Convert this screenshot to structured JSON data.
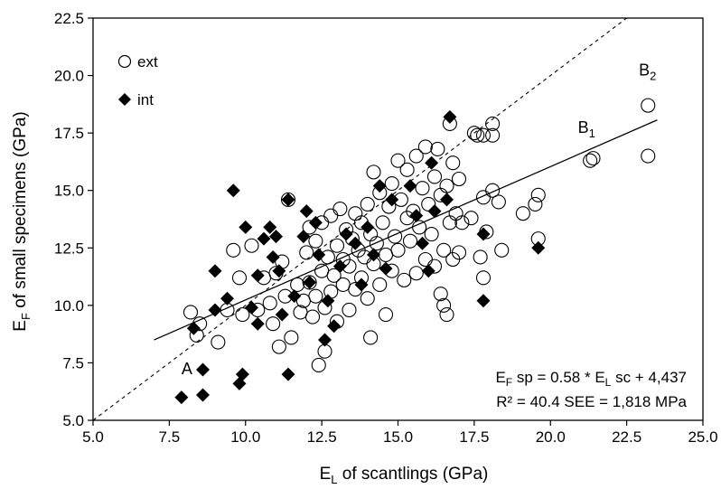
{
  "chart_data": {
    "type": "scatter",
    "xlabel": {
      "main": "E",
      "sub": "L",
      "rest": " of scantlings (GPa)"
    },
    "ylabel": {
      "main": "E",
      "sub": "F",
      "rest": " of small specimens (GPa)"
    },
    "xlim": [
      5.0,
      25.0
    ],
    "ylim": [
      5.0,
      22.5
    ],
    "xticks": [
      "5.0",
      "7.5",
      "10.0",
      "12.5",
      "15.0",
      "17.5",
      "20.0",
      "22.5",
      "25.0"
    ],
    "yticks": [
      "5.0",
      "7.5",
      "10.0",
      "12.5",
      "15.0",
      "17.5",
      "20.0",
      "22.5"
    ],
    "legend": {
      "position": "top-left",
      "ext_label": "ext",
      "int_label": "int"
    },
    "equation_line1": {
      "a": "E",
      "a_sub": "F",
      "b": " sp = 0.58 * E",
      "b_sub": "L",
      "c": " sc + 4,437"
    },
    "equation_line2": "R² = 40.4 SEE = 1,818 MPa",
    "regression": {
      "slope": 0.58,
      "intercept": 4.437,
      "x_start": 7.0,
      "x_end": 23.5
    },
    "reference_line": "1:1",
    "annotations": [
      {
        "main": "A",
        "sub": "",
        "x": 7.9,
        "y": 7.0
      },
      {
        "main": "B",
        "sub": "1",
        "x": 20.9,
        "y": 17.5
      },
      {
        "main": "B",
        "sub": "2",
        "x": 22.9,
        "y": 20.0
      }
    ],
    "series": [
      {
        "name": "ext",
        "marker": "open-circle",
        "points": [
          [
            8.2,
            9.7
          ],
          [
            8.5,
            9.2
          ],
          [
            8.4,
            8.7
          ],
          [
            9.1,
            8.4
          ],
          [
            9.4,
            9.8
          ],
          [
            9.6,
            12.4
          ],
          [
            9.8,
            11.2
          ],
          [
            9.9,
            9.6
          ],
          [
            10.2,
            12.6
          ],
          [
            10.4,
            9.8
          ],
          [
            10.6,
            11.2
          ],
          [
            10.8,
            10.1
          ],
          [
            10.9,
            9.2
          ],
          [
            11.0,
            11.4
          ],
          [
            11.2,
            11.9
          ],
          [
            11.3,
            10.4
          ],
          [
            11.4,
            14.6
          ],
          [
            11.5,
            8.6
          ],
          [
            11.1,
            8.2
          ],
          [
            11.7,
            10.9
          ],
          [
            11.8,
            9.7
          ],
          [
            11.9,
            10.2
          ],
          [
            12.0,
            12.3
          ],
          [
            12.1,
            13.4
          ],
          [
            12.1,
            11.0
          ],
          [
            12.2,
            9.5
          ],
          [
            12.3,
            12.8
          ],
          [
            12.3,
            10.4
          ],
          [
            12.4,
            7.4
          ],
          [
            12.5,
            13.6
          ],
          [
            12.5,
            11.5
          ],
          [
            12.6,
            8.0
          ],
          [
            12.6,
            9.9
          ],
          [
            12.7,
            12.1
          ],
          [
            12.8,
            10.6
          ],
          [
            12.8,
            13.9
          ],
          [
            12.9,
            11.3
          ],
          [
            13.0,
            9.3
          ],
          [
            13.0,
            12.6
          ],
          [
            13.1,
            14.2
          ],
          [
            13.2,
            10.9
          ],
          [
            13.2,
            12.0
          ],
          [
            13.3,
            13.3
          ],
          [
            13.4,
            9.8
          ],
          [
            13.4,
            11.7
          ],
          [
            13.5,
            12.9
          ],
          [
            13.6,
            14.0
          ],
          [
            13.6,
            10.7
          ],
          [
            13.7,
            12.4
          ],
          [
            13.8,
            11.2
          ],
          [
            13.8,
            13.6
          ],
          [
            13.9,
            12.1
          ],
          [
            14.0,
            14.4
          ],
          [
            14.0,
            10.3
          ],
          [
            14.1,
            8.6
          ],
          [
            14.1,
            13.1
          ],
          [
            14.2,
            11.8
          ],
          [
            14.2,
            15.8
          ],
          [
            14.3,
            12.7
          ],
          [
            14.4,
            14.9
          ],
          [
            14.4,
            10.9
          ],
          [
            14.5,
            13.6
          ],
          [
            14.6,
            12.2
          ],
          [
            14.6,
            9.6
          ],
          [
            14.7,
            14.3
          ],
          [
            14.8,
            11.5
          ],
          [
            14.8,
            15.3
          ],
          [
            14.9,
            13.0
          ],
          [
            15.0,
            16.3
          ],
          [
            15.0,
            12.4
          ],
          [
            15.1,
            14.6
          ],
          [
            15.2,
            11.1
          ],
          [
            15.3,
            13.8
          ],
          [
            15.3,
            15.9
          ],
          [
            15.4,
            12.8
          ],
          [
            15.5,
            14.1
          ],
          [
            15.6,
            16.5
          ],
          [
            15.6,
            11.4
          ],
          [
            15.7,
            13.4
          ],
          [
            15.8,
            15.1
          ],
          [
            15.9,
            12.0
          ],
          [
            15.9,
            16.9
          ],
          [
            16.0,
            14.4
          ],
          [
            16.1,
            13.1
          ],
          [
            16.2,
            15.6
          ],
          [
            16.2,
            11.7
          ],
          [
            16.3,
            16.8
          ],
          [
            16.4,
            14.8
          ],
          [
            16.4,
            10.5
          ],
          [
            16.5,
            12.4
          ],
          [
            16.5,
            10.0
          ],
          [
            16.6,
            9.6
          ],
          [
            16.6,
            15.2
          ],
          [
            16.7,
            13.6
          ],
          [
            16.7,
            17.9
          ],
          [
            16.8,
            12.0
          ],
          [
            16.8,
            16.2
          ],
          [
            16.9,
            14.0
          ],
          [
            17.0,
            12.3
          ],
          [
            17.0,
            15.5
          ],
          [
            17.1,
            13.6
          ],
          [
            17.5,
            17.5
          ],
          [
            17.6,
            17.4
          ],
          [
            17.4,
            13.8
          ],
          [
            17.7,
            12.1
          ],
          [
            17.8,
            17.4
          ],
          [
            17.8,
            14.7
          ],
          [
            17.8,
            11.2
          ],
          [
            17.9,
            13.2
          ],
          [
            18.1,
            17.4
          ],
          [
            18.1,
            17.9
          ],
          [
            18.1,
            15.0
          ],
          [
            18.3,
            14.5
          ],
          [
            18.4,
            12.4
          ],
          [
            19.1,
            14.0
          ],
          [
            19.5,
            14.4
          ],
          [
            19.6,
            14.8
          ],
          [
            19.6,
            12.9
          ],
          [
            21.3,
            16.3
          ],
          [
            21.4,
            16.4
          ],
          [
            23.2,
            18.7
          ],
          [
            23.2,
            16.5
          ]
        ]
      },
      {
        "name": "int",
        "marker": "filled-diamond",
        "points": [
          [
            7.9,
            6.0
          ],
          [
            8.6,
            6.1
          ],
          [
            8.6,
            7.2
          ],
          [
            8.3,
            9.0
          ],
          [
            9.0,
            9.8
          ],
          [
            9.0,
            11.5
          ],
          [
            9.4,
            10.3
          ],
          [
            9.6,
            15.0
          ],
          [
            9.9,
            7.0
          ],
          [
            9.8,
            6.6
          ],
          [
            10.0,
            13.4
          ],
          [
            10.2,
            9.9
          ],
          [
            10.4,
            9.2
          ],
          [
            10.4,
            11.3
          ],
          [
            10.6,
            12.9
          ],
          [
            10.8,
            13.4
          ],
          [
            10.9,
            12.1
          ],
          [
            11.0,
            13.0
          ],
          [
            11.1,
            11.5
          ],
          [
            11.2,
            9.6
          ],
          [
            11.4,
            14.6
          ],
          [
            11.4,
            7.0
          ],
          [
            11.6,
            10.4
          ],
          [
            11.9,
            13.0
          ],
          [
            12.0,
            14.1
          ],
          [
            12.1,
            11.0
          ],
          [
            12.3,
            13.6
          ],
          [
            12.4,
            12.2
          ],
          [
            12.6,
            8.5
          ],
          [
            12.7,
            10.2
          ],
          [
            12.9,
            9.1
          ],
          [
            13.1,
            11.7
          ],
          [
            13.3,
            13.1
          ],
          [
            13.6,
            12.7
          ],
          [
            13.8,
            10.9
          ],
          [
            14.0,
            13.4
          ],
          [
            14.2,
            12.2
          ],
          [
            14.4,
            15.2
          ],
          [
            14.6,
            11.6
          ],
          [
            14.8,
            14.6
          ],
          [
            15.4,
            15.2
          ],
          [
            15.6,
            13.9
          ],
          [
            15.8,
            12.7
          ],
          [
            16.0,
            11.5
          ],
          [
            16.1,
            16.2
          ],
          [
            16.2,
            14.1
          ],
          [
            16.7,
            18.2
          ],
          [
            16.6,
            14.6
          ],
          [
            17.8,
            13.1
          ],
          [
            17.8,
            10.2
          ],
          [
            19.6,
            12.5
          ]
        ]
      }
    ]
  }
}
